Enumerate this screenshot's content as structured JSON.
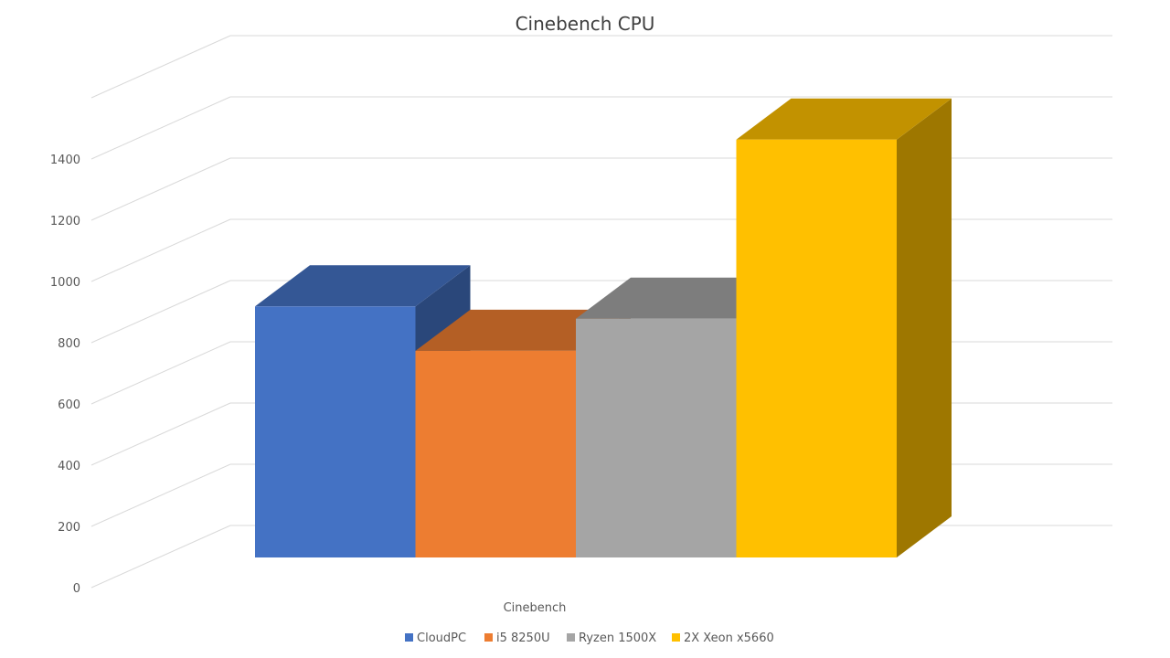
{
  "chart_data": {
    "type": "bar",
    "style": "3d-column",
    "title": "Cinebench CPU",
    "categories": [
      "Cinebench"
    ],
    "series": [
      {
        "name": "CloudPC",
        "values": [
          820
        ],
        "color": "#4472C4"
      },
      {
        "name": "i5 8250U",
        "values": [
          675
        ],
        "color": "#ED7D31"
      },
      {
        "name": "Ryzen 1500X",
        "values": [
          780
        ],
        "color": "#A5A5A5"
      },
      {
        "name": "2X Xeon x5660",
        "values": [
          1365
        ],
        "color": "#FFC000"
      }
    ],
    "yticks": [
      "0",
      "200",
      "400",
      "600",
      "800",
      "1000",
      "1200",
      "1400"
    ],
    "ylim": [
      0,
      1600
    ],
    "grid": true,
    "legend_position": "bottom"
  }
}
